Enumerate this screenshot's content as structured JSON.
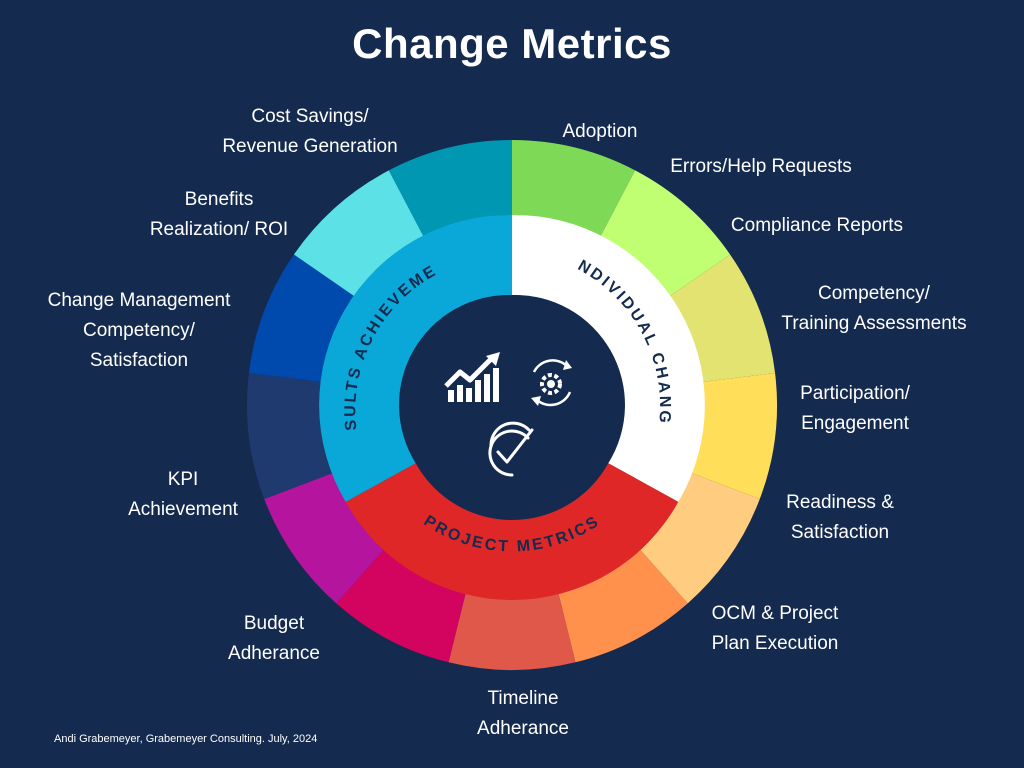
{
  "title": "Change Metrics",
  "credit": "Andi Grabemeyer, Grabemeyer Consulting. July, 2024",
  "categories": {
    "individual": {
      "label": "INDIVIDUAL CHANGE",
      "color": "#ffffff",
      "text_color": "#142a4f"
    },
    "project": {
      "label": "PROJECT METRICS",
      "color": "#e02727",
      "text_color": "#142a4f"
    },
    "results": {
      "label": "RESULTS ACHIEVEMENT",
      "color": "#0aa8d8",
      "text_color": "#142a4f"
    }
  },
  "metrics": [
    {
      "lines": [
        "Adoption"
      ],
      "color": "#7ed957"
    },
    {
      "lines": [
        "Errors/Help Requests"
      ],
      "color": "#c1ff72"
    },
    {
      "lines": [
        "Compliance Reports"
      ],
      "color": "#e2e370"
    },
    {
      "lines": [
        "Competency/",
        "Training Assessments"
      ],
      "color": "#ffde59"
    },
    {
      "lines": [
        "Participation/",
        "Engagement"
      ],
      "color": "#ffcc80"
    },
    {
      "lines": [
        "Readiness &",
        "Satisfaction"
      ],
      "color": "#ff914d"
    },
    {
      "lines": [
        "OCM & Project",
        "Plan Execution"
      ],
      "color": "#e0584a"
    },
    {
      "lines": [
        "Timeline",
        "Adherance"
      ],
      "color": "#d3045f"
    },
    {
      "lines": [
        "Budget",
        "Adherance"
      ],
      "color": "#b5149f"
    },
    {
      "lines": [
        "KPI",
        "Achievement"
      ],
      "color": "#1e3a6e"
    },
    {
      "lines": [
        "Change Management",
        "Competency/",
        "Satisfaction"
      ],
      "color": "#004aad"
    },
    {
      "lines": [
        "Benefits",
        "Realization/ ROI"
      ],
      "color": "#5ce1e6"
    },
    {
      "lines": [
        "Cost Savings/",
        "Revenue Generation"
      ],
      "color": "#0097b2"
    }
  ],
  "center": {
    "color": "#142a4f",
    "icons": [
      "growth-chart-icon",
      "gear-cycle-icon",
      "check-cycle-icon"
    ]
  }
}
